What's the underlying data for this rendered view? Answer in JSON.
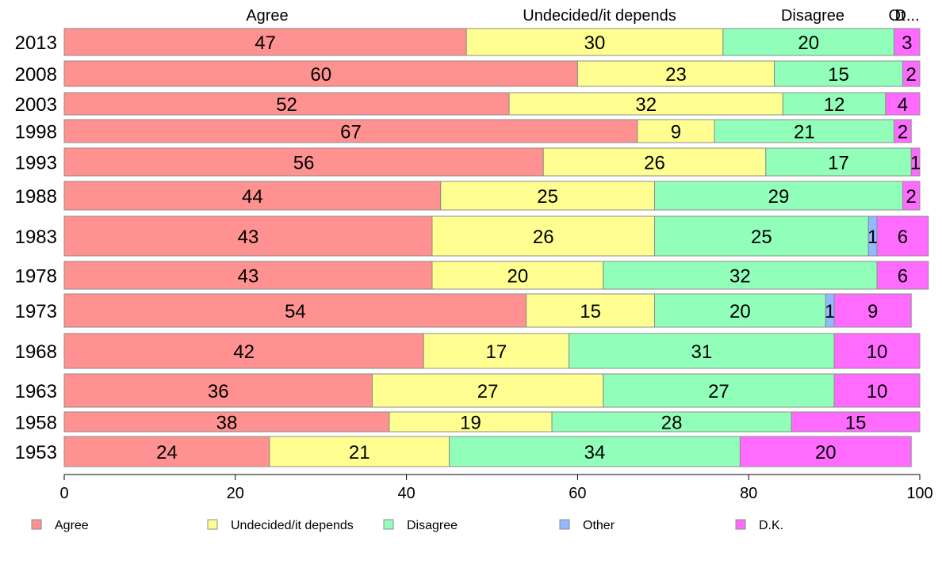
{
  "chart_data": {
    "type": "bar",
    "orientation": "horizontal",
    "stacked": true,
    "categories": [
      "2013",
      "2008",
      "2003",
      "1998",
      "1993",
      "1988",
      "1983",
      "1978",
      "1973",
      "1968",
      "1963",
      "1958",
      "1953"
    ],
    "series": [
      {
        "name": "Agree",
        "color": "#ff9191",
        "values": [
          47,
          60,
          52,
          67,
          56,
          44,
          43,
          43,
          54,
          42,
          36,
          38,
          24
        ]
      },
      {
        "name": "Undecided/it depends",
        "color": "#ffff91",
        "values": [
          30,
          23,
          32,
          9,
          26,
          25,
          26,
          20,
          15,
          17,
          27,
          19,
          21
        ]
      },
      {
        "name": "Disagree",
        "color": "#91ffb9",
        "values": [
          20,
          15,
          12,
          21,
          17,
          29,
          25,
          32,
          20,
          31,
          27,
          28,
          34
        ]
      },
      {
        "name": "Other",
        "color": "#91b9ff",
        "values": [
          0,
          0,
          0,
          0,
          0,
          0,
          1,
          0,
          1,
          0,
          0,
          0,
          0
        ]
      },
      {
        "name": "D.K.",
        "color": "#ff6bff",
        "values": [
          3,
          2,
          4,
          2,
          1,
          2,
          6,
          6,
          9,
          10,
          10,
          15,
          20
        ]
      }
    ],
    "top_labels": [
      "Agree",
      "Undecided/it depends",
      "Disagree",
      "Ot",
      "D..."
    ],
    "xlim": [
      0,
      100
    ],
    "xticks": [
      "0",
      "20",
      "40",
      "60",
      "80",
      "100"
    ],
    "legend_position": "bottom",
    "grid": false
  }
}
